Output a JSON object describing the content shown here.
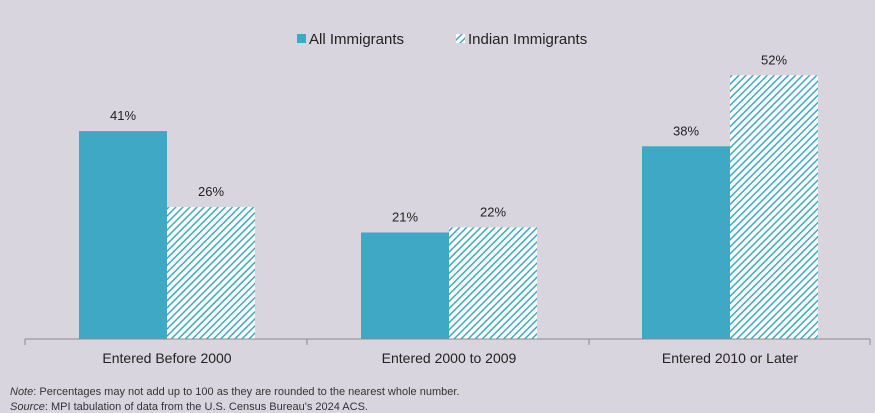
{
  "chart_data": {
    "type": "bar",
    "categories": [
      "Entered Before 2000",
      "Entered 2000 to 2009",
      "Entered 2010 or Later"
    ],
    "series": [
      {
        "name": "All Immigrants",
        "values": [
          41,
          21,
          38
        ],
        "labels": [
          "41%",
          "21%",
          "38%"
        ],
        "color": "#3fa8c4",
        "pattern": "solid"
      },
      {
        "name": "Indian Immigrants",
        "values": [
          26,
          22,
          52
        ],
        "labels": [
          "26%",
          "22%",
          "52%"
        ],
        "color": "#3fa8c4",
        "pattern": "diagonal-hatch"
      }
    ],
    "ylim": [
      0,
      56
    ],
    "grid": false,
    "legend_position": "top-center"
  },
  "notes": {
    "note_label": "Note",
    "note_text": ": Percentages may not add up to 100 as they are rounded to the nearest whole number.",
    "source_label": "Source",
    "source_text": ": MPI tabulation of data from the U.S. Census Bureau's 2024 ACS."
  },
  "colors": {
    "background": "#d9d5df",
    "bar": "#3fa8c4",
    "axis": "#8a8a8a"
  }
}
